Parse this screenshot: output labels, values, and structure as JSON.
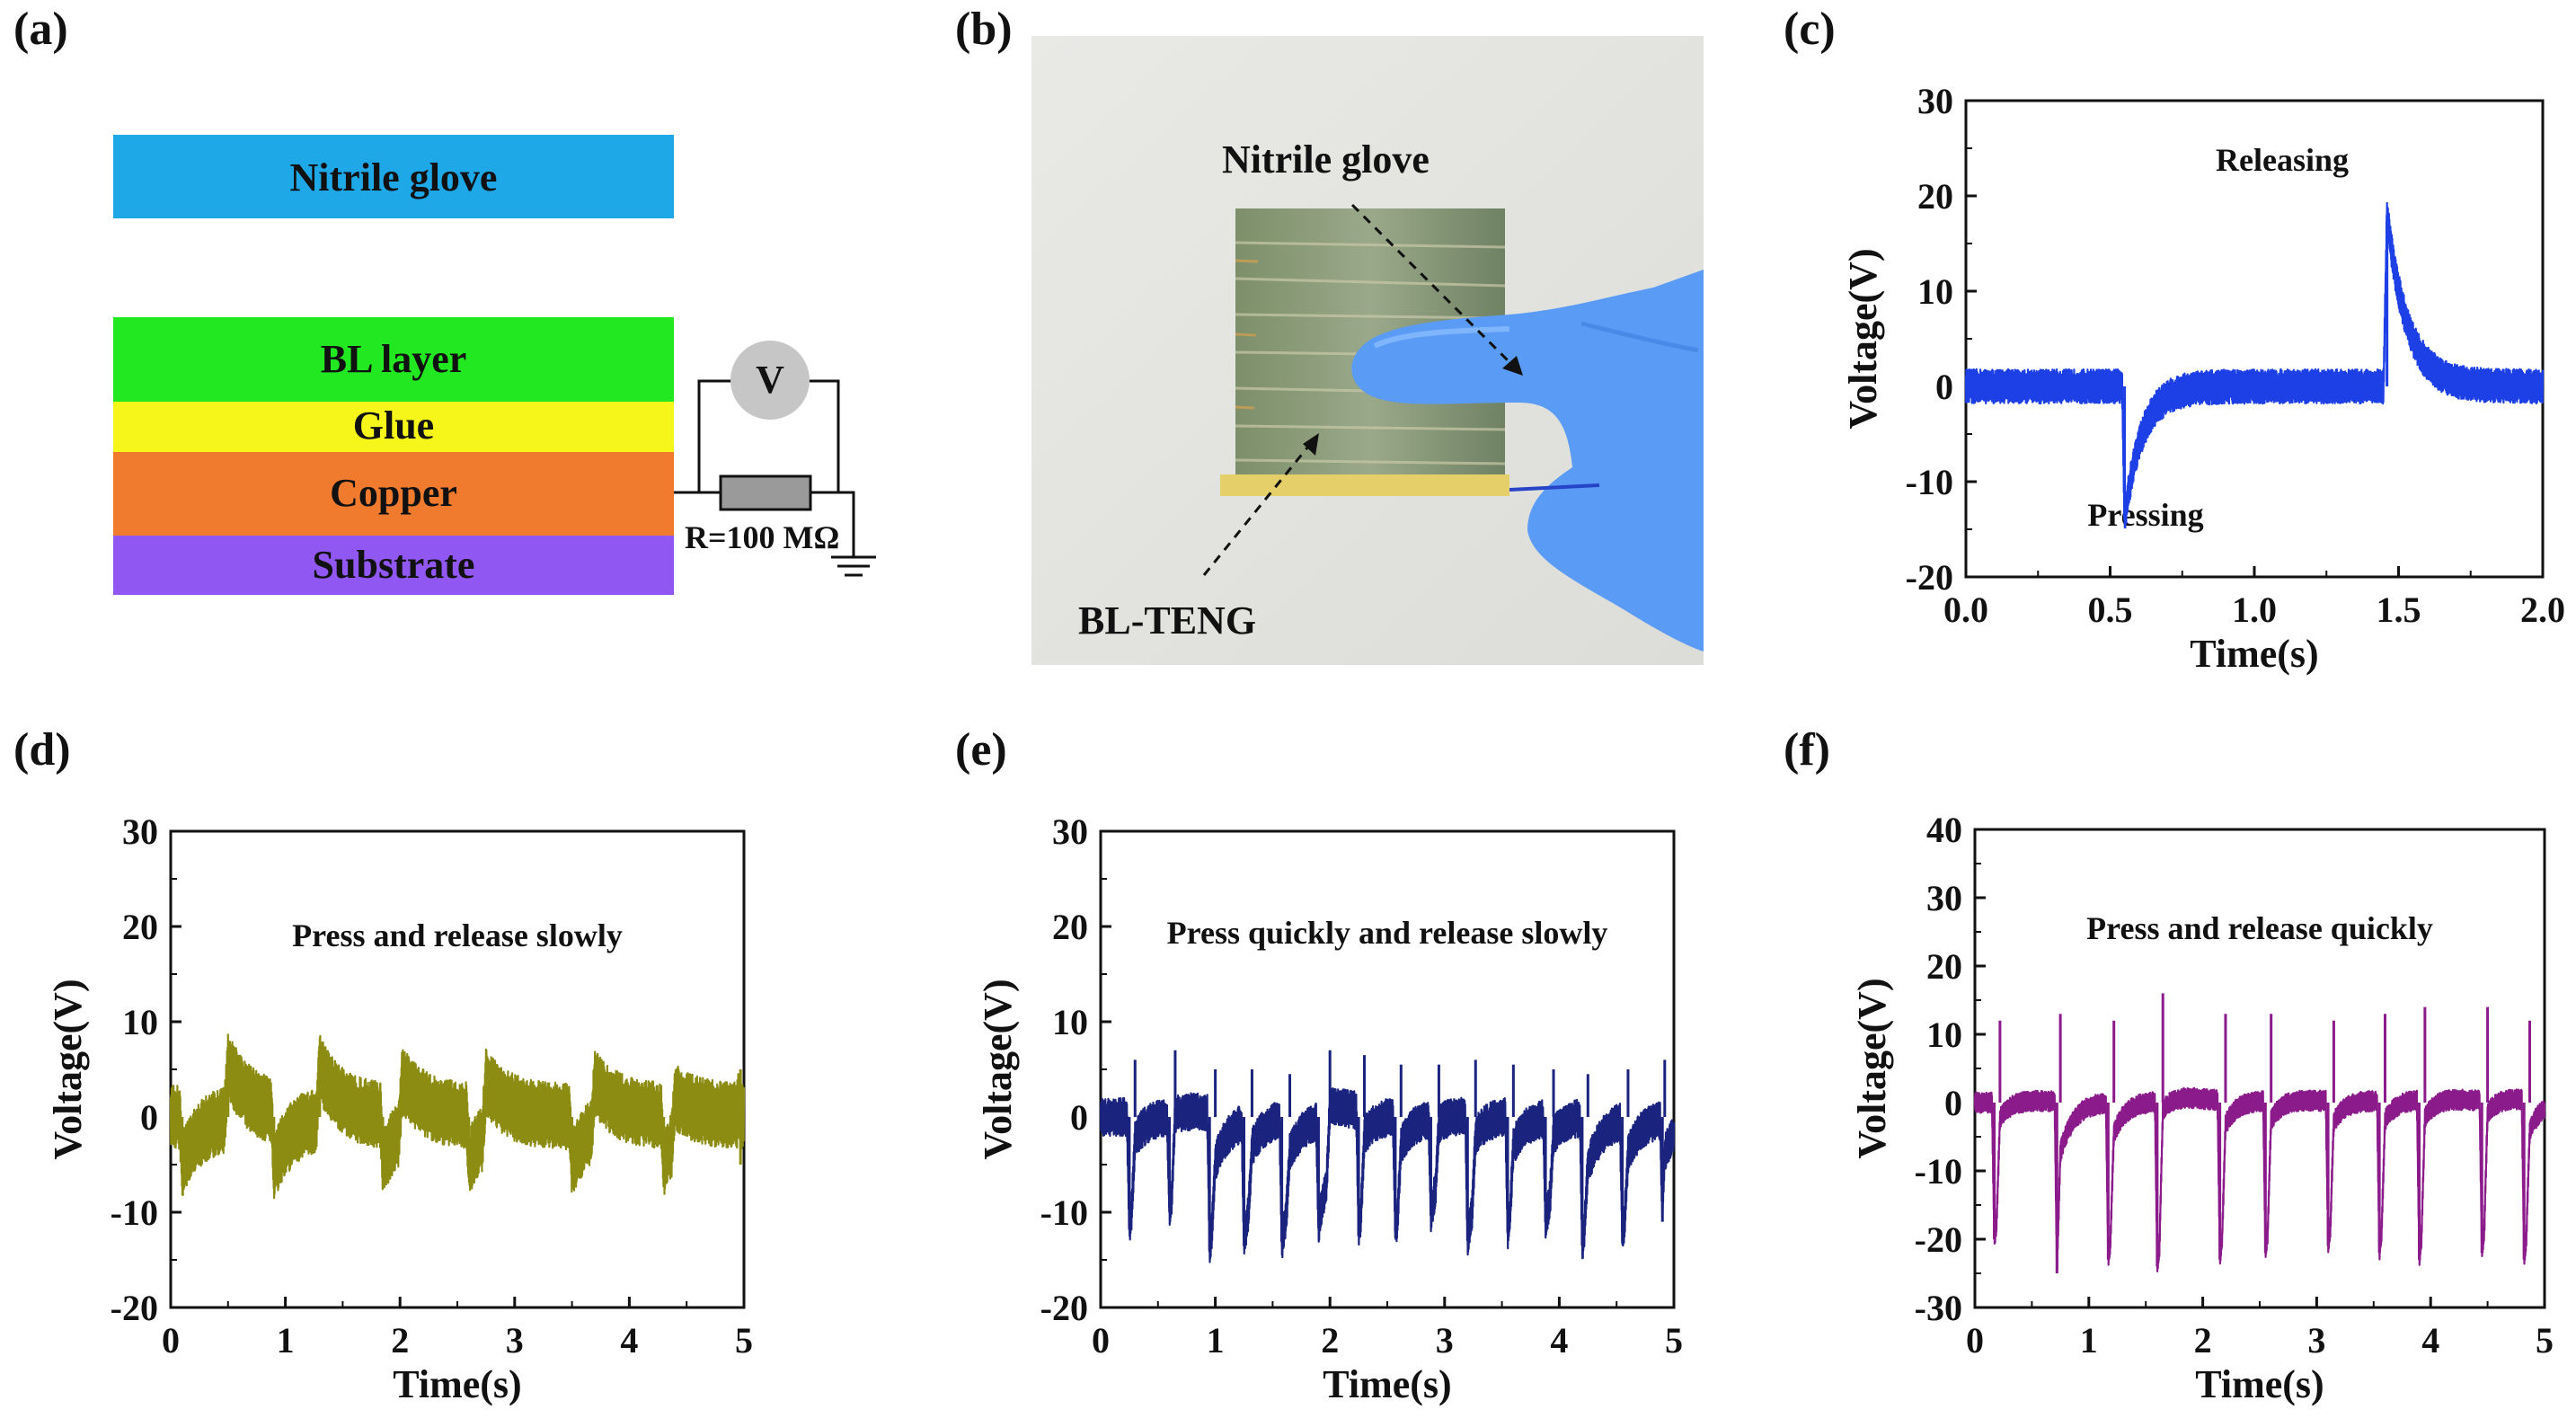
{
  "panel_labels": {
    "a": "(a)",
    "b": "(b)",
    "c": "(c)",
    "d": "(d)",
    "e": "(e)",
    "f": "(f)"
  },
  "diagram": {
    "layers": [
      {
        "label": "Nitrile glove",
        "color": "#1fa8e8"
      },
      {
        "label": "BL layer",
        "color": "#22e822"
      },
      {
        "label": "Glue",
        "color": "#f6f61a"
      },
      {
        "label": "Copper",
        "color": "#f07b2e"
      },
      {
        "label": "Substrate",
        "color": "#9157f2"
      }
    ],
    "meter_label": "V",
    "resistor_label": "R=100 MΩ"
  },
  "photo": {
    "label_top": "Nitrile glove",
    "label_bottom": "BL-TENG",
    "glove_color": "#5a9cf5"
  },
  "chart_data": [
    {
      "panel": "c",
      "type": "line",
      "title": "",
      "annotations": [
        "Releasing",
        "Pressing"
      ],
      "xlabel": "Time(s)",
      "ylabel": "Voltage(V)",
      "xlim": [
        0.0,
        2.0
      ],
      "ylim": [
        -20,
        30
      ],
      "xticks": [
        "0.0",
        "0.5",
        "1.0",
        "1.5",
        "2.0"
      ],
      "yticks": [
        "-20",
        "-10",
        "0",
        "10",
        "20",
        "30"
      ],
      "color": "#1c3fe6",
      "series": [
        {
          "name": "voltage",
          "press_times": [
            0.55
          ],
          "press_peaks": [
            -14
          ],
          "release_times": [
            1.46
          ],
          "release_peaks": [
            18
          ],
          "noise_amplitude": 1.8
        }
      ]
    },
    {
      "panel": "d",
      "type": "line",
      "title": "Press and release slowly",
      "xlabel": "Time(s)",
      "ylabel": "Voltage(V)",
      "xlim": [
        0,
        5
      ],
      "ylim": [
        -20,
        30
      ],
      "xticks": [
        "0",
        "1",
        "2",
        "3",
        "4",
        "5"
      ],
      "yticks": [
        "-20",
        "-10",
        "0",
        "10",
        "20",
        "30"
      ],
      "color": "#8c8c12",
      "series": [
        {
          "name": "voltage",
          "press_times": [
            0.1,
            0.9,
            1.85,
            2.6,
            3.5,
            4.3,
            4.97
          ],
          "press_peaks": [
            -5,
            -6,
            -5,
            -5,
            -5,
            -5,
            -5
          ],
          "release_times": [
            0.5,
            1.3,
            2.02,
            2.75,
            3.7,
            4.4,
            4.97
          ],
          "release_peaks": [
            6,
            5.5,
            5.5,
            5.5,
            5,
            4.5,
            5
          ],
          "noise_amplitude": 3.5
        }
      ]
    },
    {
      "panel": "e",
      "type": "line",
      "title": "Press quickly and release slowly",
      "xlabel": "Time(s)",
      "ylabel": "Voltage(V)",
      "xlim": [
        0,
        5
      ],
      "ylim": [
        -20,
        30
      ],
      "xticks": [
        "0",
        "1",
        "2",
        "3",
        "4",
        "5"
      ],
      "yticks": [
        "-20",
        "-10",
        "0",
        "10",
        "20",
        "30"
      ],
      "color": "#1a237e",
      "series": [
        {
          "name": "voltage",
          "press_times": [
            0.25,
            0.6,
            0.95,
            1.25,
            1.58,
            1.9,
            2.25,
            2.57,
            2.88,
            3.2,
            3.55,
            3.88,
            4.2,
            4.55,
            4.9
          ],
          "press_peaks": [
            -11.5,
            -9.5,
            -14,
            -12.5,
            -13,
            -11,
            -12.5,
            -12,
            -10,
            -13,
            -12,
            -11,
            -13.5,
            -12,
            -11
          ],
          "release_times": [
            0.3,
            0.65,
            1.0,
            1.32,
            1.65,
            2.0,
            2.3,
            2.62,
            2.95,
            3.27,
            3.6,
            3.95,
            4.25,
            4.6,
            4.92
          ],
          "release_peaks": [
            6,
            7,
            5,
            5,
            4.5,
            7,
            6.5,
            5.5,
            5.5,
            6,
            5.5,
            5,
            4.5,
            5,
            6
          ],
          "noise_amplitude": 2.0
        }
      ]
    },
    {
      "panel": "f",
      "type": "line",
      "title": "Press and release quickly",
      "xlabel": "Time(s)",
      "ylabel": "Voltage(V)",
      "xlim": [
        0,
        5
      ],
      "ylim": [
        -30,
        40
      ],
      "xticks": [
        "0",
        "1",
        "2",
        "3",
        "4",
        "5"
      ],
      "yticks": [
        "-30",
        "-20",
        "-10",
        "0",
        "10",
        "20",
        "30",
        "40"
      ],
      "color": "#8b1a8b",
      "series": [
        {
          "name": "voltage",
          "press_times": [
            0.17,
            0.72,
            1.17,
            1.6,
            2.15,
            2.55,
            3.1,
            3.55,
            3.9,
            4.45,
            4.82
          ],
          "press_peaks": [
            -20,
            -25,
            -23,
            -24,
            -23,
            -22,
            -21,
            -22,
            -23,
            -22,
            -23
          ],
          "release_times": [
            0.22,
            0.75,
            1.22,
            1.65,
            2.2,
            2.6,
            3.15,
            3.6,
            3.95,
            4.5,
            4.87
          ],
          "release_peaks": [
            12,
            13,
            12,
            16,
            13,
            13,
            12,
            13,
            14,
            14,
            12
          ],
          "noise_amplitude": 1.5
        }
      ]
    }
  ]
}
